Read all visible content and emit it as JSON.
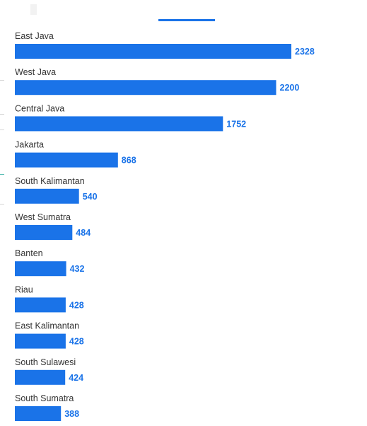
{
  "colors": {
    "bar": "#1a73e8",
    "value_label": "#1a73e8",
    "category_label": "#333333"
  },
  "chart_data": {
    "type": "bar",
    "orientation": "horizontal",
    "categories": [
      "East Java",
      "West Java",
      "Central Java",
      "Jakarta",
      "South Kalimantan",
      "West Sumatra",
      "Banten",
      "Riau",
      "East Kalimantan",
      "South Sulawesi",
      "South Sumatra"
    ],
    "values": [
      2328,
      2200,
      1752,
      868,
      540,
      484,
      432,
      428,
      428,
      424,
      388
    ],
    "title": "",
    "xlabel": "",
    "ylabel": "",
    "xlim": [
      0,
      2328
    ],
    "grid": false,
    "data_labels": true
  }
}
